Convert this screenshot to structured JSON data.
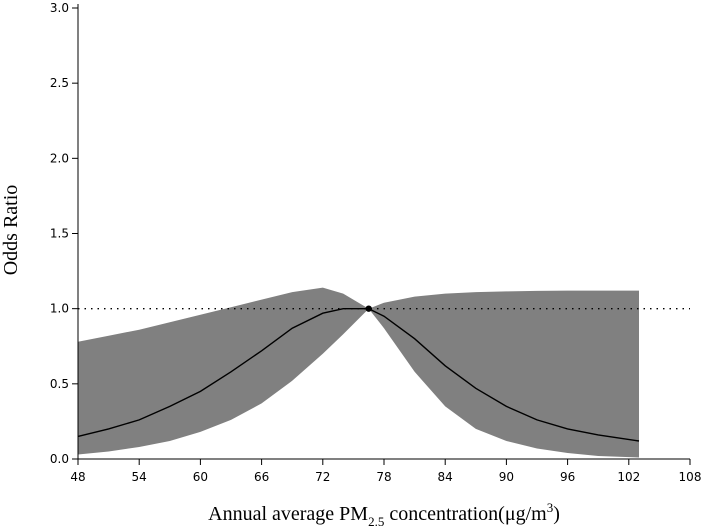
{
  "chart_data": {
    "type": "area",
    "xlabel": {
      "main": "Annual average PM",
      "subscript": "2.5",
      "rest": " concentration(μg/m",
      "superscript": "3",
      "close": ")"
    },
    "ylabel": "Odds Ratio",
    "xlim": [
      48,
      108
    ],
    "ylim": [
      0.0,
      3.0
    ],
    "x_ticks": [
      48,
      54,
      60,
      66,
      72,
      78,
      84,
      90,
      96,
      102,
      108
    ],
    "x_tick_labels": [
      "48",
      "54",
      "60",
      "66",
      "72",
      "78",
      "84",
      "90",
      "96",
      "102",
      "108"
    ],
    "y_ticks": [
      0.0,
      0.5,
      1.0,
      1.5,
      2.0,
      2.5,
      3.0
    ],
    "y_tick_labels": [
      "0.0",
      "0.5",
      "1.0",
      "1.5",
      "2.0",
      "2.5",
      "3.0"
    ],
    "reference_line": {
      "y": 1.0,
      "style": "dotted"
    },
    "reference_point": {
      "x": 76.5,
      "y": 1.0
    },
    "band_color": "#808080",
    "line_color": "#000000",
    "series": [
      {
        "x": [
          48,
          51,
          54,
          57,
          60,
          63,
          66,
          69,
          72,
          74,
          76.5,
          78,
          81,
          84,
          87,
          90,
          93,
          96,
          99,
          103
        ],
        "y": [
          0.15,
          0.2,
          0.26,
          0.35,
          0.45,
          0.58,
          0.72,
          0.87,
          0.97,
          1.0,
          1.0,
          0.95,
          0.8,
          0.62,
          0.47,
          0.35,
          0.26,
          0.2,
          0.16,
          0.12
        ],
        "lower": [
          0.03,
          0.05,
          0.08,
          0.12,
          0.18,
          0.26,
          0.37,
          0.52,
          0.7,
          0.83,
          1.0,
          0.87,
          0.58,
          0.35,
          0.2,
          0.12,
          0.07,
          0.04,
          0.02,
          0.01
        ],
        "upper": [
          0.78,
          0.82,
          0.86,
          0.91,
          0.96,
          1.01,
          1.06,
          1.11,
          1.14,
          1.1,
          1.0,
          1.04,
          1.08,
          1.1,
          1.11,
          1.115,
          1.118,
          1.12,
          1.12,
          1.12
        ]
      }
    ]
  }
}
